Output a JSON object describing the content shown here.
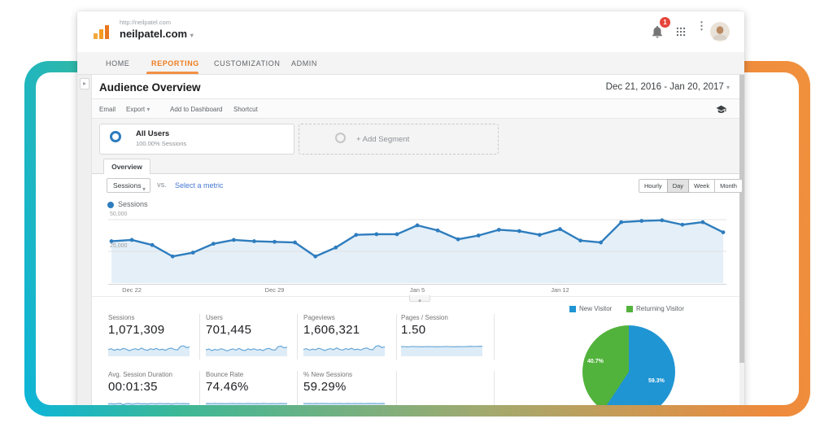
{
  "window": {
    "url_caption": "http://neilpatel.com",
    "site_name": "neilpatel.com",
    "notification_count": "1"
  },
  "nav": {
    "items": [
      {
        "label": "HOME"
      },
      {
        "label": "REPORTING",
        "active": true
      },
      {
        "label": "CUSTOMIZATION"
      },
      {
        "label": "ADMIN"
      }
    ]
  },
  "header": {
    "title": "Audience Overview",
    "date_range": "Dec 21, 2016 - Jan 20, 2017"
  },
  "toolbar": {
    "email": "Email",
    "export": "Export",
    "add_to_dashboard": "Add to Dashboard",
    "shortcut": "Shortcut"
  },
  "segments": {
    "all_users": {
      "name": "All Users",
      "detail": "100.00% Sessions"
    },
    "add_segment_label": "+ Add Segment"
  },
  "tabs": {
    "overview": "Overview"
  },
  "controls": {
    "metric_select": "Sessions",
    "vs_label": "VS.",
    "select_metric_link": "Select a metric",
    "granularity": [
      "Hourly",
      "Day",
      "Week",
      "Month"
    ],
    "granularity_active": "Day",
    "legend_label": "Sessions"
  },
  "chart_data": {
    "type": "line",
    "title": "Sessions over time",
    "legend": [
      "Sessions"
    ],
    "color": "#2e7dbe",
    "area_color": "#e4eff8",
    "ylim": [
      0,
      50000
    ],
    "yticks": [
      {
        "label": "25,000",
        "value": 25000
      },
      {
        "label": "50,000",
        "value": 50000
      }
    ],
    "x_ticks": [
      {
        "label": "Dec 22",
        "index": 1
      },
      {
        "label": "Dec 29",
        "index": 8
      },
      {
        "label": "Jan 5",
        "index": 15
      },
      {
        "label": "Jan 12",
        "index": 22
      }
    ],
    "values": [
      33000,
      34000,
      30000,
      21000,
      24000,
      31000,
      34000,
      33000,
      32500,
      32000,
      21000,
      28000,
      38000,
      38500,
      38500,
      45500,
      41500,
      34500,
      37500,
      42000,
      41000,
      38000,
      42500,
      33500,
      32000,
      48000,
      49000,
      49500,
      46000,
      48000,
      40000
    ]
  },
  "cards": [
    {
      "label": "Sessions",
      "value": "1,071,309",
      "spark": [
        0.45,
        0.52,
        0.38,
        0.48,
        0.42,
        0.55,
        0.48,
        0.35,
        0.45,
        0.52,
        0.42,
        0.58,
        0.45,
        0.38,
        0.52,
        0.45,
        0.55,
        0.42,
        0.48,
        0.38,
        0.52,
        0.58,
        0.45,
        0.42,
        0.72,
        0.78,
        0.62,
        0.68
      ]
    },
    {
      "label": "Users",
      "value": "701,445",
      "spark": [
        0.42,
        0.5,
        0.36,
        0.46,
        0.4,
        0.52,
        0.45,
        0.33,
        0.43,
        0.5,
        0.4,
        0.55,
        0.42,
        0.36,
        0.5,
        0.43,
        0.52,
        0.4,
        0.46,
        0.36,
        0.5,
        0.55,
        0.43,
        0.4,
        0.7,
        0.75,
        0.6,
        0.65
      ]
    },
    {
      "label": "Pageviews",
      "value": "1,606,321",
      "spark": [
        0.46,
        0.53,
        0.4,
        0.49,
        0.43,
        0.56,
        0.49,
        0.36,
        0.46,
        0.53,
        0.43,
        0.59,
        0.46,
        0.4,
        0.53,
        0.46,
        0.56,
        0.43,
        0.49,
        0.4,
        0.53,
        0.59,
        0.46,
        0.43,
        0.73,
        0.79,
        0.63,
        0.69
      ]
    },
    {
      "label": "Pages / Session",
      "value": "1.50",
      "spark": [
        0.7,
        0.7,
        0.69,
        0.7,
        0.72,
        0.7,
        0.7,
        0.69,
        0.7,
        0.71,
        0.7,
        0.7,
        0.69,
        0.7,
        0.7,
        0.72,
        0.7,
        0.7,
        0.69,
        0.71,
        0.7,
        0.7,
        0.72,
        0.73,
        0.72,
        0.72,
        0.73,
        0.73
      ]
    },
    {
      "label": "Avg. Session Duration",
      "value": "00:01:35",
      "spark": [
        0.68,
        0.7,
        0.66,
        0.7,
        0.72,
        0.6,
        0.7,
        0.71,
        0.65,
        0.7,
        0.72,
        0.68,
        0.7,
        0.66,
        0.71,
        0.7,
        0.68,
        0.72,
        0.7,
        0.69,
        0.71,
        0.66,
        0.7,
        0.72,
        0.7,
        0.71,
        0.69,
        0.7
      ]
    },
    {
      "label": "Bounce Rate",
      "value": "74.46%",
      "spark": [
        0.7,
        0.71,
        0.7,
        0.72,
        0.7,
        0.71,
        0.7,
        0.7,
        0.71,
        0.72,
        0.7,
        0.71,
        0.7,
        0.7,
        0.72,
        0.71,
        0.7,
        0.71,
        0.7,
        0.72,
        0.71,
        0.7,
        0.71,
        0.7,
        0.71,
        0.72,
        0.7,
        0.71
      ]
    },
    {
      "label": "% New Sessions",
      "value": "59.29%",
      "spark": [
        0.72,
        0.71,
        0.72,
        0.7,
        0.72,
        0.71,
        0.72,
        0.72,
        0.71,
        0.7,
        0.72,
        0.71,
        0.72,
        0.7,
        0.71,
        0.72,
        0.7,
        0.72,
        0.71,
        0.72,
        0.7,
        0.71,
        0.72,
        0.71,
        0.72,
        0.7,
        0.72,
        0.71
      ]
    }
  ],
  "pie_chart": {
    "type": "pie",
    "slices": [
      {
        "label": "New Visitor",
        "pct": 59.3,
        "pct_label": "59.3%",
        "color": "#2095d3"
      },
      {
        "label": "Returning Visitor",
        "pct": 40.7,
        "pct_label": "40.7%",
        "color": "#52b33c"
      }
    ]
  },
  "colors": {
    "accent_orange": "#ef7d1f",
    "line_blue": "#2e7dbe",
    "spark_blue": "#68a7d8",
    "spark_fill": "#ddecf7",
    "badge_red": "#e5443a"
  }
}
